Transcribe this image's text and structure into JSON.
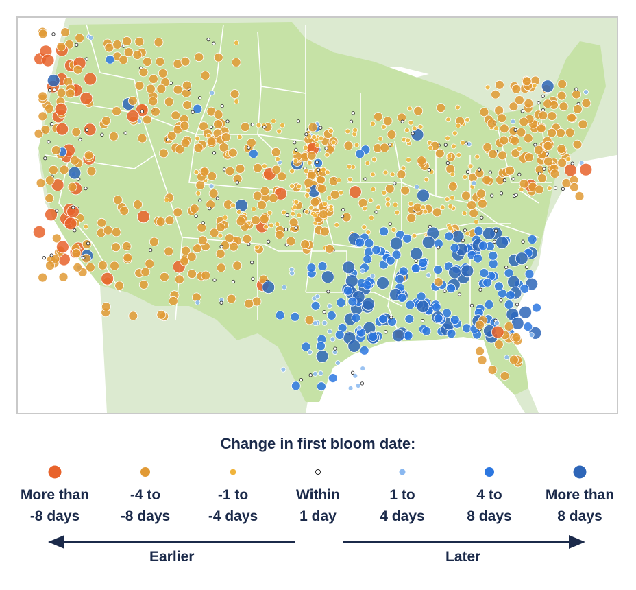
{
  "legend": {
    "title": "Change in first bloom date:",
    "items": [
      {
        "id": "more-than-minus-8",
        "label": "More than\n-8 days",
        "color": "#e8632b",
        "size": "large"
      },
      {
        "id": "minus-4-to-minus-8",
        "label": "-4 to\n-8 days",
        "color": "#e19a35",
        "size": "medium"
      },
      {
        "id": "minus-1-to-minus-4",
        "label": "-1 to\n-4 days",
        "color": "#f0b43c",
        "size": "small"
      },
      {
        "id": "within-1",
        "label": "Within\n1 day",
        "color": "#ffffff",
        "size": "tiny"
      },
      {
        "id": "1-to-4",
        "label": "1 to\n4 days",
        "color": "#8ab8f0",
        "size": "small"
      },
      {
        "id": "4-to-8",
        "label": "4 to\n8 days",
        "color": "#2c77e0",
        "size": "medium"
      },
      {
        "id": "more-than-8",
        "label": "More than\n8 days",
        "color": "#2e66b8",
        "size": "large"
      }
    ]
  },
  "arrows": {
    "earlier_label": "Earlier",
    "later_label": "Later",
    "color": "#1b2a4a"
  },
  "map": {
    "colors": {
      "land": "#c6e2a6",
      "neighbor": "#dcead0",
      "water": "#ffffff",
      "state_border": "#ffffff",
      "frame": "#c9c9c9"
    },
    "regions": [
      {
        "name": "west-coast",
        "category": "more-than-minus-8",
        "dominant": "minus-4-to-minus-8",
        "count": 120
      },
      {
        "name": "northwest-interior",
        "category": "minus-4-to-minus-8",
        "dominant": "minus-4-to-minus-8",
        "count": 90
      },
      {
        "name": "southwest",
        "category": "minus-4-to-minus-8",
        "dominant": "minus-4-to-minus-8",
        "count": 80
      },
      {
        "name": "central-plains",
        "category": "minus-1-to-minus-4",
        "dominant": "minus-4-to-minus-8",
        "count": 160
      },
      {
        "name": "midwest",
        "category": "minus-4-to-minus-8",
        "dominant": "minus-1-to-minus-4",
        "count": 220
      },
      {
        "name": "northeast",
        "category": "minus-4-to-minus-8",
        "dominant": "minus-4-to-minus-8",
        "count": 140
      },
      {
        "name": "southeast",
        "category": "more-than-8",
        "dominant": "4-to-8",
        "count": 200
      },
      {
        "name": "texas",
        "category": "4-to-8",
        "dominant": "1-to-4",
        "count": 60
      },
      {
        "name": "florida",
        "category": "minus-4-to-minus-8",
        "dominant": "minus-4-to-minus-8",
        "count": 20
      }
    ]
  }
}
